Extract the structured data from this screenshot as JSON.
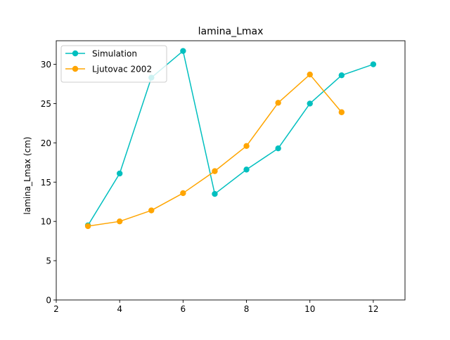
{
  "chart_data": {
    "type": "line",
    "title": "lamina_Lmax",
    "xlabel": "",
    "ylabel": "lamina_Lmax (cm)",
    "xlim": [
      2,
      13
    ],
    "ylim": [
      0,
      33
    ],
    "xticks": [
      2,
      4,
      6,
      8,
      10,
      12
    ],
    "yticks": [
      0,
      5,
      10,
      15,
      20,
      25,
      30
    ],
    "grid": false,
    "legend_position": "top-left",
    "series": [
      {
        "name": "Simulation",
        "color": "#00bfbf",
        "marker": "circle",
        "x": [
          3,
          4,
          5,
          6,
          7,
          8,
          9,
          10,
          11,
          12
        ],
        "y": [
          9.5,
          16.1,
          28.3,
          31.7,
          13.5,
          16.6,
          19.3,
          25.0,
          28.6,
          30.0
        ]
      },
      {
        "name": "Ljutovac 2002",
        "color": "#ffa500",
        "marker": "circle",
        "x": [
          3,
          4,
          5,
          6,
          7,
          8,
          9,
          10,
          11
        ],
        "y": [
          9.4,
          10.0,
          11.4,
          13.6,
          16.4,
          19.6,
          25.1,
          28.7,
          23.9
        ]
      }
    ]
  }
}
